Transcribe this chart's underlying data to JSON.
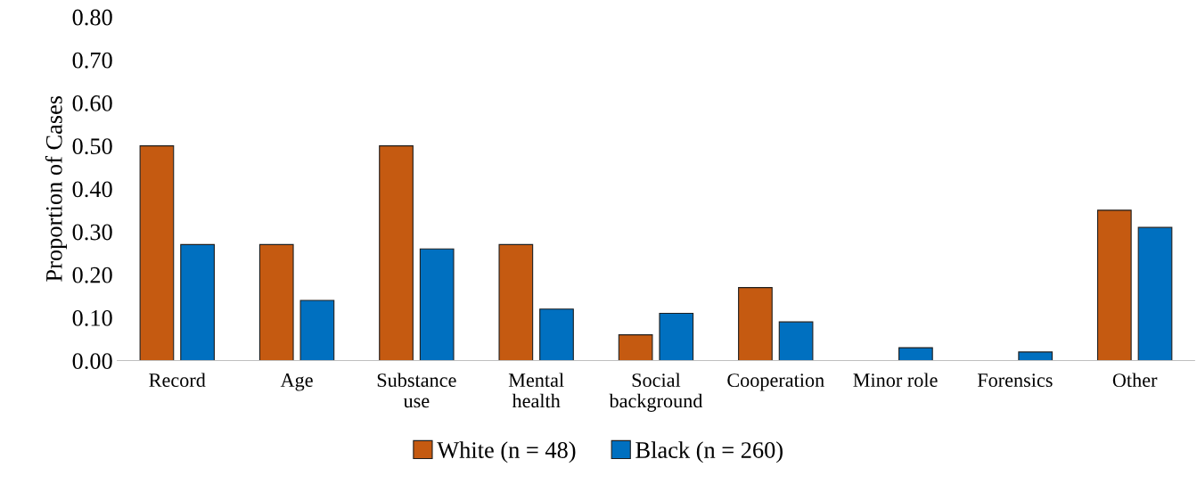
{
  "chart_data": {
    "type": "bar",
    "ylabel": "Proportion of Cases",
    "categories": [
      "Record",
      "Age",
      "Substance\nuse",
      "Mental\nhealth",
      "Social\nbackground",
      "Cooperation",
      "Minor role",
      "Forensics",
      "Other"
    ],
    "series": [
      {
        "name": "White (n = 48)",
        "color": "#c55a11",
        "values": [
          0.5,
          0.27,
          0.5,
          0.27,
          0.06,
          0.17,
          null,
          null,
          0.35
        ]
      },
      {
        "name": "Black (n = 260)",
        "color": "#0070c0",
        "values": [
          0.27,
          0.14,
          0.26,
          0.12,
          0.11,
          0.09,
          0.03,
          0.02,
          0.31
        ]
      }
    ],
    "ylim": [
      0,
      0.8
    ],
    "yticks": [
      {
        "value": 0,
        "label": "0.00"
      },
      {
        "value": 0.1,
        "label": "0.10"
      },
      {
        "value": 0.2,
        "label": "0.20"
      },
      {
        "value": 0.3,
        "label": "0.30"
      },
      {
        "value": 0.4,
        "label": "0.40"
      },
      {
        "value": 0.5,
        "label": "0.50"
      },
      {
        "value": 0.6,
        "label": "0.60"
      },
      {
        "value": 0.7,
        "label": "0.70"
      },
      {
        "value": 0.8,
        "label": "0.80"
      }
    ],
    "grid": false,
    "legend": "bottom"
  }
}
